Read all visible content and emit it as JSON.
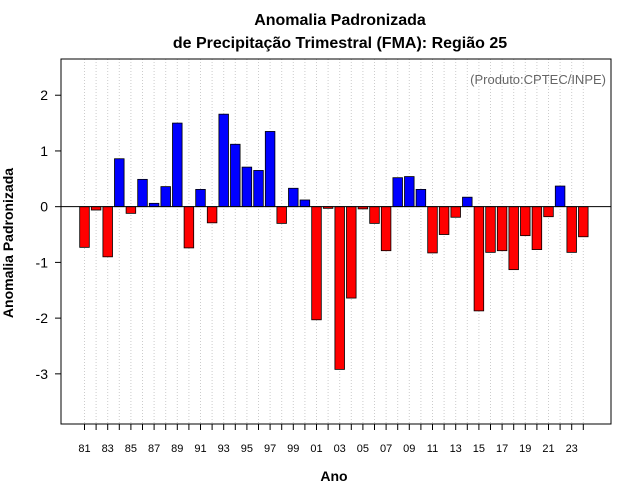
{
  "chart_data": {
    "type": "bar",
    "title": "Anomalia Padronizada",
    "subtitle": "de Precipitação Trimestral (FMA): Região 25",
    "xlabel": "Ano",
    "ylabel": "Anomalia Padronizada",
    "credit": "(Produto:CPTEC/INPE)",
    "ylim": [
      -3.9,
      2.65
    ],
    "yticks": [
      -3,
      -2,
      -1,
      0,
      1,
      2
    ],
    "xtick_labels": [
      "81",
      "83",
      "85",
      "87",
      "89",
      "91",
      "93",
      "95",
      "97",
      "99",
      "01",
      "03",
      "05",
      "07",
      "09",
      "11",
      "13",
      "15",
      "17",
      "19",
      "21",
      "23"
    ],
    "grid": "vertical dotted",
    "colors": {
      "positive": "#0000ff",
      "negative": "#ff0000"
    },
    "categories": [
      "1981",
      "1982",
      "1983",
      "1984",
      "1985",
      "1986",
      "1987",
      "1988",
      "1989",
      "1990",
      "1991",
      "1992",
      "1993",
      "1994",
      "1995",
      "1996",
      "1997",
      "1998",
      "1999",
      "2000",
      "2001",
      "2002",
      "2003",
      "2004",
      "2005",
      "2006",
      "2007",
      "2008",
      "2009",
      "2010",
      "2011",
      "2012",
      "2013",
      "2014",
      "2015",
      "2016",
      "2017",
      "2018",
      "2019",
      "2020",
      "2021",
      "2022",
      "2023",
      "2024"
    ],
    "values": [
      -0.73,
      -0.06,
      -0.9,
      0.86,
      -0.12,
      0.49,
      0.06,
      0.36,
      1.5,
      -0.74,
      0.31,
      -0.29,
      1.66,
      1.12,
      0.71,
      0.65,
      1.35,
      -0.3,
      0.33,
      0.12,
      -2.03,
      -0.03,
      -2.92,
      -1.64,
      -0.04,
      -0.3,
      -0.79,
      0.52,
      0.54,
      0.31,
      -0.83,
      -0.5,
      -0.19,
      0.17,
      -1.87,
      -0.82,
      -0.79,
      -1.13,
      -0.52,
      -0.77,
      -0.18,
      0.37,
      -0.82,
      -0.54
    ]
  }
}
